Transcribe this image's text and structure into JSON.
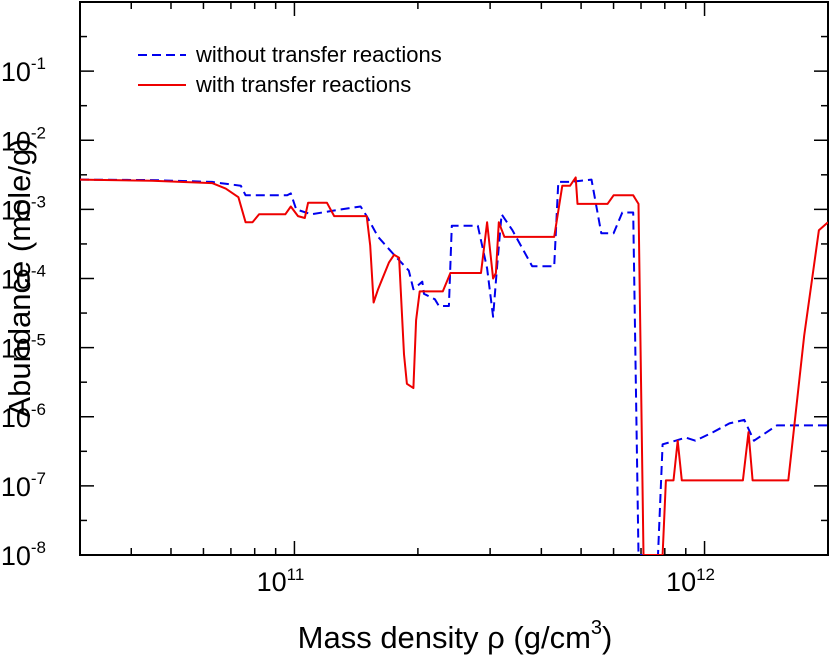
{
  "chart_data": {
    "type": "line",
    "xscale": "log",
    "yscale": "log",
    "xlim": [
      30000000000.0,
      2000000000000.0
    ],
    "ylim": [
      1e-08,
      1.0
    ],
    "xlabel_main": "Mass density ρ (g/cm",
    "xlabel_exp": "3",
    "xlabel_close": ")",
    "ylabel": "Abundance (mole/g)",
    "x_ticks": [
      {
        "base": "10",
        "exp": "11",
        "value": 100000000000.0
      },
      {
        "base": "10",
        "exp": "12",
        "value": 1000000000000.0
      }
    ],
    "y_ticks": [
      {
        "base": "10",
        "exp": "-8",
        "value": 1e-08
      },
      {
        "base": "10",
        "exp": "-7",
        "value": 1e-07
      },
      {
        "base": "10",
        "exp": "-6",
        "value": 1e-06
      },
      {
        "base": "10",
        "exp": "-5",
        "value": 1e-05
      },
      {
        "base": "10",
        "exp": "-4",
        "value": 0.0001
      },
      {
        "base": "10",
        "exp": "-3",
        "value": 0.001
      },
      {
        "base": "10",
        "exp": "-2",
        "value": 0.01
      },
      {
        "base": "10",
        "exp": "-1",
        "value": 0.1
      }
    ],
    "legend_position": "top-left",
    "series": [
      {
        "name": "without transfer reactions",
        "color": "#0000ee",
        "dash": "dashed",
        "points": [
          [
            30000000000.0,
            0.0027
          ],
          [
            45000000000.0,
            0.00265
          ],
          [
            63000000000.0,
            0.0025
          ],
          [
            66000000000.0,
            0.0024
          ],
          [
            74000000000.0,
            0.0022
          ],
          [
            76000000000.0,
            0.0016
          ],
          [
            96000000000.0,
            0.0016
          ],
          [
            98000000000.0,
            0.0017
          ],
          [
            101000000000.0,
            0.001
          ],
          [
            110000000000.0,
            0.00085
          ],
          [
            130000000000.0,
            0.001
          ],
          [
            145000000000.0,
            0.0011
          ],
          [
            150000000000.0,
            0.0008
          ],
          [
            160000000000.0,
            0.0004
          ],
          [
            175000000000.0,
            0.00022
          ],
          [
            190000000000.0,
            0.00013
          ],
          [
            195000000000.0,
            7e-05
          ],
          [
            205000000000.0,
            9e-05
          ],
          [
            207000000000.0,
            6e-05
          ],
          [
            220000000000.0,
            5e-05
          ],
          [
            225000000000.0,
            4e-05
          ],
          [
            238000000000.0,
            4e-05
          ],
          [
            242000000000.0,
            0.00058
          ],
          [
            280000000000.0,
            0.00058
          ],
          [
            295000000000.0,
            0.00014
          ],
          [
            305000000000.0,
            2.8e-05
          ],
          [
            312000000000.0,
            0.00015
          ],
          [
            320000000000.0,
            0.00085
          ],
          [
            340000000000.0,
            0.0005
          ],
          [
            380000000000.0,
            0.00015
          ],
          [
            430000000000.0,
            0.00015
          ],
          [
            440000000000.0,
            0.0025
          ],
          [
            470000000000.0,
            0.0025
          ],
          [
            500000000000.0,
            0.0026
          ],
          [
            530000000000.0,
            0.0027
          ],
          [
            560000000000.0,
            0.00045
          ],
          [
            600000000000.0,
            0.00045
          ],
          [
            630000000000.0,
            0.0009
          ],
          [
            670000000000.0,
            0.0009
          ],
          [
            690000000000.0,
            1e-08
          ],
          [
            770000000000.0,
            1e-08
          ],
          [
            790000000000.0,
            4e-07
          ],
          [
            850000000000.0,
            4.5e-07
          ],
          [
            900000000000.0,
            5e-07
          ],
          [
            950000000000.0,
            4.5e-07
          ],
          [
            1050000000000.0,
            6e-07
          ],
          [
            1150000000000.0,
            8e-07
          ],
          [
            1250000000000.0,
            9e-07
          ],
          [
            1320000000000.0,
            4.5e-07
          ],
          [
            1500000000000.0,
            7.5e-07
          ],
          [
            2000000000000.0,
            7.5e-07
          ]
        ]
      },
      {
        "name": "with transfer reactions",
        "color": "#ee0000",
        "dash": "solid",
        "points": [
          [
            30000000000.0,
            0.0027
          ],
          [
            45000000000.0,
            0.0026
          ],
          [
            63000000000.0,
            0.0024
          ],
          [
            68000000000.0,
            0.002
          ],
          [
            73000000000.0,
            0.0015
          ],
          [
            76000000000.0,
            0.00065
          ],
          [
            79000000000.0,
            0.00065
          ],
          [
            82000000000.0,
            0.00085
          ],
          [
            95000000000.0,
            0.00085
          ],
          [
            98000000000.0,
            0.0011
          ],
          [
            102000000000.0,
            0.0008
          ],
          [
            106000000000.0,
            0.00075
          ],
          [
            108000000000.0,
            0.00125
          ],
          [
            120000000000.0,
            0.00125
          ],
          [
            125000000000.0,
            0.0008
          ],
          [
            150000000000.0,
            0.0008
          ],
          [
            153000000000.0,
            0.0003
          ],
          [
            156000000000.0,
            4.5e-05
          ],
          [
            160000000000.0,
            7e-05
          ],
          [
            170000000000.0,
            0.00017
          ],
          [
            175000000000.0,
            0.00022
          ],
          [
            180000000000.0,
            0.0002
          ],
          [
            185000000000.0,
            8e-06
          ],
          [
            188000000000.0,
            3e-06
          ],
          [
            195000000000.0,
            2.6e-06
          ],
          [
            198000000000.0,
            2.5e-05
          ],
          [
            202000000000.0,
            6.5e-05
          ],
          [
            230000000000.0,
            6.5e-05
          ],
          [
            240000000000.0,
            0.00012
          ],
          [
            285000000000.0,
            0.00012
          ],
          [
            295000000000.0,
            0.00065
          ],
          [
            305000000000.0,
            0.0001
          ],
          [
            310000000000.0,
            0.00012
          ],
          [
            315000000000.0,
            0.00065
          ],
          [
            325000000000.0,
            0.0004
          ],
          [
            430000000000.0,
            0.0004
          ],
          [
            450000000000.0,
            0.0022
          ],
          [
            470000000000.0,
            0.0022
          ],
          [
            485000000000.0,
            0.0029
          ],
          [
            490000000000.0,
            0.0012
          ],
          [
            580000000000.0,
            0.0012
          ],
          [
            600000000000.0,
            0.0016
          ],
          [
            670000000000.0,
            0.0016
          ],
          [
            690000000000.0,
            0.0012
          ],
          [
            710000000000.0,
            1e-08
          ],
          [
            790000000000.0,
            1e-08
          ],
          [
            805000000000.0,
            1.2e-07
          ],
          [
            840000000000.0,
            1.2e-07
          ],
          [
            860000000000.0,
            4.5e-07
          ],
          [
            880000000000.0,
            1.2e-07
          ],
          [
            1240000000000.0,
            1.2e-07
          ],
          [
            1280000000000.0,
            6e-07
          ],
          [
            1310000000000.0,
            1.2e-07
          ],
          [
            1600000000000.0,
            1.2e-07
          ],
          [
            1750000000000.0,
            1.5e-05
          ],
          [
            1900000000000.0,
            0.0005
          ],
          [
            2000000000000.0,
            0.00065
          ]
        ]
      }
    ]
  }
}
